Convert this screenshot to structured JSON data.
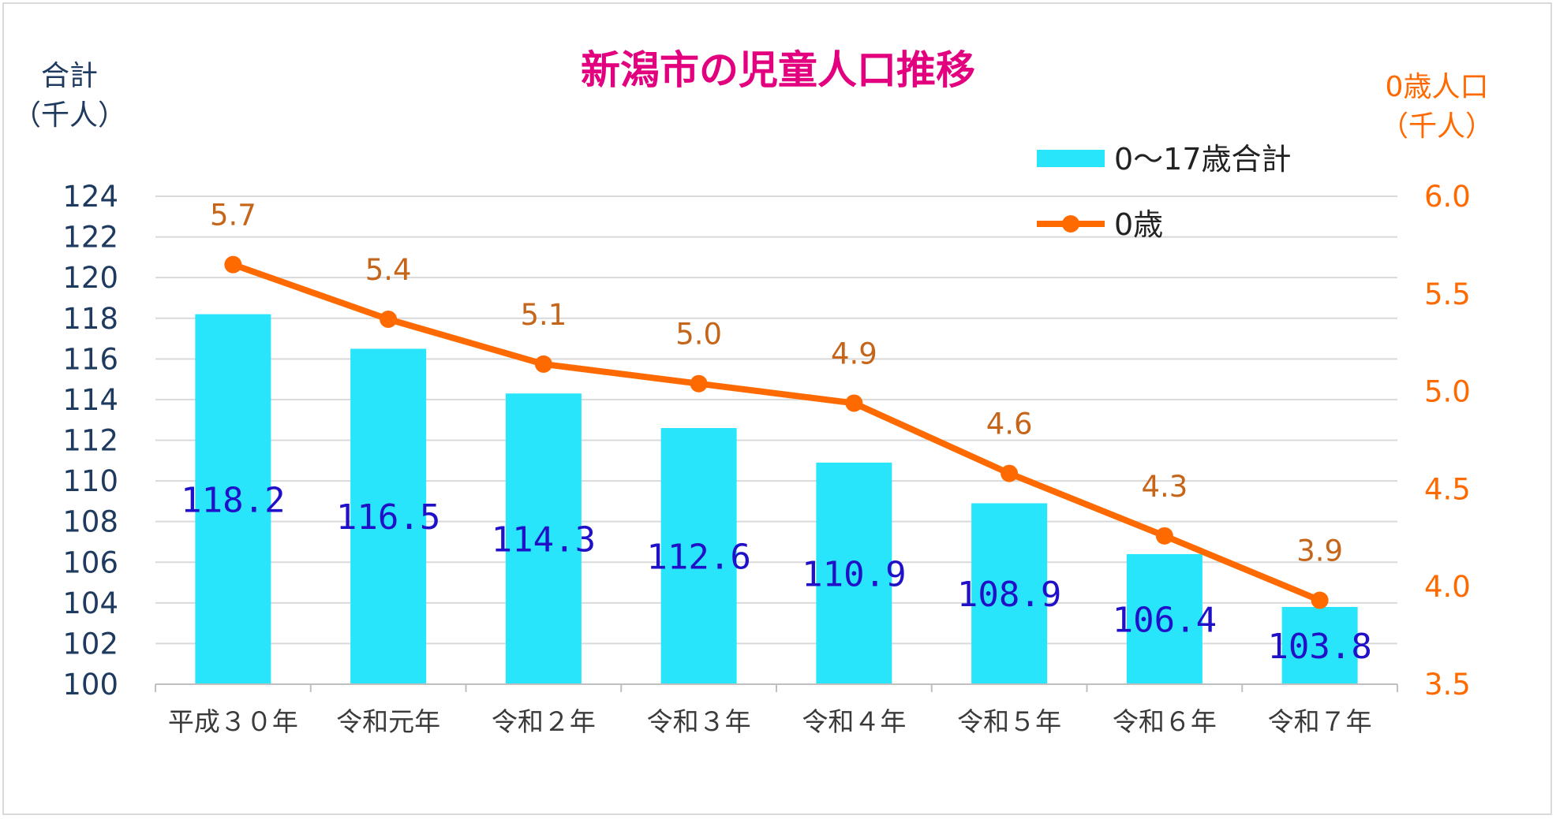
{
  "colors": {
    "title": "#e3007f",
    "bar": "#29e5fb",
    "bar_label": "#2010c8",
    "line": "#ff6a00",
    "line_label": "#c5651a",
    "left_axis_text": "#1f3a5f",
    "right_axis_text": "#ff6a00",
    "category_text": "#3a3a3a",
    "legend_text": "#222222",
    "grid": "#d9d9d9"
  },
  "chart_data": {
    "type": "bar",
    "title": "新潟市の児童人口推移",
    "categories": [
      "平成３０年",
      "令和元年",
      "令和２年",
      "令和３年",
      "令和４年",
      "令和５年",
      "令和６年",
      "令和７年"
    ],
    "y_left": {
      "label_line1": "合計",
      "label_line2": "（千人）",
      "ylim": [
        100,
        124
      ],
      "ticks": [
        "100",
        "102",
        "104",
        "106",
        "108",
        "110",
        "112",
        "114",
        "116",
        "118",
        "120",
        "122",
        "124"
      ]
    },
    "y_right": {
      "label_line1": "0歳人口",
      "label_line2": "（千人）",
      "ylim": [
        3.5,
        6.0
      ],
      "ticks": [
        "3.5",
        "4.0",
        "4.5",
        "5.0",
        "5.5",
        "6.0"
      ]
    },
    "grid": true,
    "legend_position": "top-right",
    "series": [
      {
        "name": "0～17歳合計",
        "type": "bar",
        "axis": "left",
        "values": [
          118.2,
          116.5,
          114.3,
          112.6,
          110.9,
          108.9,
          106.4,
          103.8
        ],
        "labels": [
          "118.2",
          "116.5",
          "114.3",
          "112.6",
          "110.9",
          "108.9",
          "106.4",
          "103.8"
        ]
      },
      {
        "name": "0歳",
        "type": "line",
        "axis": "right",
        "values": [
          5.65,
          5.37,
          5.14,
          5.04,
          4.94,
          4.58,
          4.26,
          3.93
        ],
        "labels": [
          "5.7",
          "5.4",
          "5.1",
          "5.0",
          "4.9",
          "4.6",
          "4.3",
          "3.9"
        ]
      }
    ]
  }
}
